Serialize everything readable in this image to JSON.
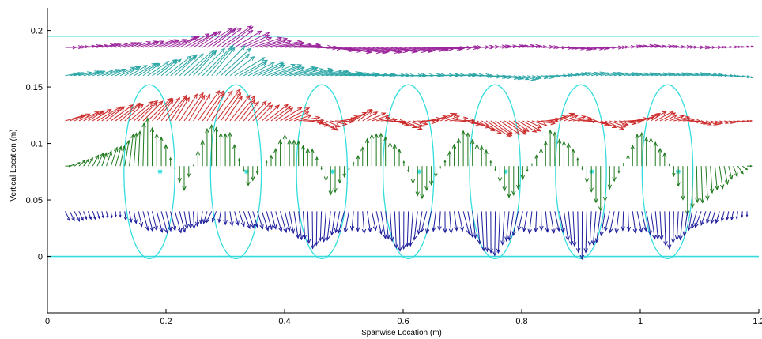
{
  "chart_data": {
    "type": "quiver",
    "title": "",
    "xlabel": "Spanwise Location (m)",
    "ylabel": "Vertical Location (m)",
    "xlim": [
      0,
      1.2
    ],
    "ylim": [
      -0.05,
      0.22
    ],
    "xticks": [
      0,
      0.2,
      0.4,
      0.6,
      0.8,
      1,
      1.2
    ],
    "xtick_labels": [
      "0",
      "0.2",
      "0.4",
      "0.6",
      "0.8",
      "1",
      "1.2"
    ],
    "yticks": [
      0,
      0.05,
      0.1,
      0.15,
      0.2
    ],
    "ytick_labels": [
      "0",
      "0.05",
      "0.1",
      "0.15",
      "0.2"
    ],
    "grid": false,
    "reference_lines": [
      {
        "y": 0,
        "color": "#33dddd"
      },
      {
        "y": 0.195,
        "color": "#33dddd"
      }
    ],
    "vortex_ellipses": {
      "color": "#33dddd",
      "center_y": 0.075,
      "semi_width_x": 0.055,
      "semi_height_y": 0.055,
      "centers_x": [
        0.172,
        0.318,
        0.463,
        0.609,
        0.755,
        0.9,
        1.046
      ],
      "marker_y": 0.075
    },
    "vector_rows": [
      {
        "name": "",
        "color": "#9b249b",
        "y": 0.185,
        "x_range": [
          0.03,
          1.18
        ],
        "samples": [
          {
            "x": 0.03,
            "u": 0.02,
            "v": 0.0
          },
          {
            "x": 0.1,
            "u": 0.02,
            "v": 0.003
          },
          {
            "x": 0.2,
            "u": 0.04,
            "v": 0.008
          },
          {
            "x": 0.26,
            "u": 0.05,
            "v": 0.018
          },
          {
            "x": 0.3,
            "u": 0.05,
            "v": 0.02
          },
          {
            "x": 0.34,
            "u": 0.05,
            "v": 0.01
          },
          {
            "x": 0.4,
            "u": 0.05,
            "v": 0.003
          },
          {
            "x": 0.5,
            "u": 0.05,
            "v": -0.005
          },
          {
            "x": 0.6,
            "u": 0.04,
            "v": -0.004
          },
          {
            "x": 0.7,
            "u": 0.03,
            "v": 0.0
          },
          {
            "x": 0.8,
            "u": 0.02,
            "v": 0.002
          },
          {
            "x": 0.9,
            "u": 0.02,
            "v": -0.002
          },
          {
            "x": 1.0,
            "u": 0.02,
            "v": 0.002
          },
          {
            "x": 1.1,
            "u": 0.02,
            "v": 0.0
          },
          {
            "x": 1.18,
            "u": 0.01,
            "v": 0.001
          }
        ]
      },
      {
        "name": "",
        "color": "#2aa5a5",
        "y": 0.16,
        "x_range": [
          0.03,
          1.18
        ],
        "samples": [
          {
            "x": 0.03,
            "u": 0.02,
            "v": 0.002
          },
          {
            "x": 0.1,
            "u": 0.03,
            "v": 0.006
          },
          {
            "x": 0.18,
            "u": 0.04,
            "v": 0.015
          },
          {
            "x": 0.24,
            "u": 0.05,
            "v": 0.025
          },
          {
            "x": 0.28,
            "u": 0.05,
            "v": 0.03
          },
          {
            "x": 0.32,
            "u": 0.05,
            "v": 0.015
          },
          {
            "x": 0.4,
            "u": 0.05,
            "v": 0.008
          },
          {
            "x": 0.5,
            "u": 0.04,
            "v": 0.002
          },
          {
            "x": 0.6,
            "u": 0.03,
            "v": 0.0
          },
          {
            "x": 0.7,
            "u": 0.03,
            "v": 0.001
          },
          {
            "x": 0.8,
            "u": 0.02,
            "v": -0.004
          },
          {
            "x": 0.9,
            "u": 0.02,
            "v": 0.003
          },
          {
            "x": 1.0,
            "u": 0.02,
            "v": 0.002
          },
          {
            "x": 1.1,
            "u": 0.02,
            "v": 0.002
          },
          {
            "x": 1.18,
            "u": 0.01,
            "v": -0.002
          }
        ]
      },
      {
        "name": "",
        "color": "#cc2a2a",
        "y": 0.12,
        "x_range": [
          0.03,
          1.18
        ],
        "samples": [
          {
            "x": 0.03,
            "u": 0.03,
            "v": 0.005
          },
          {
            "x": 0.1,
            "u": 0.04,
            "v": 0.015
          },
          {
            "x": 0.16,
            "u": 0.04,
            "v": 0.02
          },
          {
            "x": 0.22,
            "u": 0.03,
            "v": 0.025
          },
          {
            "x": 0.28,
            "u": 0.04,
            "v": 0.03
          },
          {
            "x": 0.34,
            "u": 0.03,
            "v": 0.018
          },
          {
            "x": 0.4,
            "u": 0.04,
            "v": 0.012
          },
          {
            "x": 0.46,
            "u": 0.03,
            "v": -0.01
          },
          {
            "x": 0.52,
            "u": 0.03,
            "v": 0.012
          },
          {
            "x": 0.6,
            "u": 0.03,
            "v": -0.008
          },
          {
            "x": 0.66,
            "u": 0.03,
            "v": 0.008
          },
          {
            "x": 0.74,
            "u": 0.04,
            "v": -0.015
          },
          {
            "x": 0.8,
            "u": 0.03,
            "v": -0.01
          },
          {
            "x": 0.86,
            "u": 0.03,
            "v": 0.008
          },
          {
            "x": 0.94,
            "u": 0.03,
            "v": -0.008
          },
          {
            "x": 1.02,
            "u": 0.03,
            "v": 0.01
          },
          {
            "x": 1.1,
            "u": 0.02,
            "v": -0.004
          },
          {
            "x": 1.18,
            "u": 0.01,
            "v": 0.0
          }
        ]
      },
      {
        "name": "",
        "color": "#1f7a1f",
        "y": 0.08,
        "x_range": [
          0.03,
          1.18
        ],
        "samples": [
          {
            "x": 0.03,
            "u": 0.01,
            "v": 0.0
          },
          {
            "x": 0.12,
            "u": 0.01,
            "v": 0.02
          },
          {
            "x": 0.17,
            "u": 0.0,
            "v": 0.045
          },
          {
            "x": 0.2,
            "u": 0.0,
            "v": 0.02
          },
          {
            "x": 0.23,
            "u": 0.0,
            "v": -0.025
          },
          {
            "x": 0.27,
            "u": 0.0,
            "v": 0.04
          },
          {
            "x": 0.31,
            "u": 0.0,
            "v": 0.03
          },
          {
            "x": 0.34,
            "u": 0.0,
            "v": -0.02
          },
          {
            "x": 0.4,
            "u": 0.0,
            "v": 0.03
          },
          {
            "x": 0.45,
            "u": 0.0,
            "v": 0.015
          },
          {
            "x": 0.48,
            "u": 0.0,
            "v": -0.03
          },
          {
            "x": 0.55,
            "u": 0.0,
            "v": 0.035
          },
          {
            "x": 0.59,
            "u": 0.0,
            "v": 0.02
          },
          {
            "x": 0.63,
            "u": 0.0,
            "v": -0.035
          },
          {
            "x": 0.7,
            "u": 0.0,
            "v": 0.035
          },
          {
            "x": 0.74,
            "u": 0.0,
            "v": 0.015
          },
          {
            "x": 0.78,
            "u": 0.0,
            "v": -0.035
          },
          {
            "x": 0.85,
            "u": 0.0,
            "v": 0.035
          },
          {
            "x": 0.89,
            "u": 0.0,
            "v": 0.015
          },
          {
            "x": 0.93,
            "u": 0.0,
            "v": -0.045
          },
          {
            "x": 1.0,
            "u": 0.0,
            "v": 0.035
          },
          {
            "x": 1.04,
            "u": 0.0,
            "v": 0.015
          },
          {
            "x": 1.08,
            "u": 0.0,
            "v": -0.045
          },
          {
            "x": 1.18,
            "u": 0.01,
            "v": 0.0
          }
        ]
      },
      {
        "name": "",
        "color": "#1c1c9c",
        "y": 0.04,
        "x_range": [
          0.03,
          1.18
        ],
        "samples": [
          {
            "x": 0.03,
            "u": 0.01,
            "v": -0.01
          },
          {
            "x": 0.12,
            "u": 0.0,
            "v": -0.005
          },
          {
            "x": 0.17,
            "u": 0.01,
            "v": -0.02
          },
          {
            "x": 0.22,
            "u": 0.01,
            "v": -0.02
          },
          {
            "x": 0.28,
            "u": -0.01,
            "v": -0.01
          },
          {
            "x": 0.32,
            "u": 0.01,
            "v": -0.015
          },
          {
            "x": 0.4,
            "u": 0.01,
            "v": -0.02
          },
          {
            "x": 0.45,
            "u": 0.0,
            "v": -0.035
          },
          {
            "x": 0.5,
            "u": -0.01,
            "v": -0.02
          },
          {
            "x": 0.55,
            "u": 0.01,
            "v": -0.02
          },
          {
            "x": 0.6,
            "u": 0.0,
            "v": -0.04
          },
          {
            "x": 0.64,
            "u": -0.01,
            "v": -0.02
          },
          {
            "x": 0.7,
            "u": 0.01,
            "v": -0.02
          },
          {
            "x": 0.75,
            "u": 0.0,
            "v": -0.045
          },
          {
            "x": 0.8,
            "u": -0.01,
            "v": -0.02
          },
          {
            "x": 0.86,
            "u": 0.01,
            "v": -0.02
          },
          {
            "x": 0.9,
            "u": 0.0,
            "v": -0.045
          },
          {
            "x": 0.95,
            "u": -0.01,
            "v": -0.02
          },
          {
            "x": 1.0,
            "u": 0.01,
            "v": -0.02
          },
          {
            "x": 1.05,
            "u": 0.0,
            "v": -0.035
          },
          {
            "x": 1.1,
            "u": -0.01,
            "v": -0.015
          },
          {
            "x": 1.18,
            "u": 0.0,
            "v": -0.005
          }
        ]
      }
    ]
  }
}
